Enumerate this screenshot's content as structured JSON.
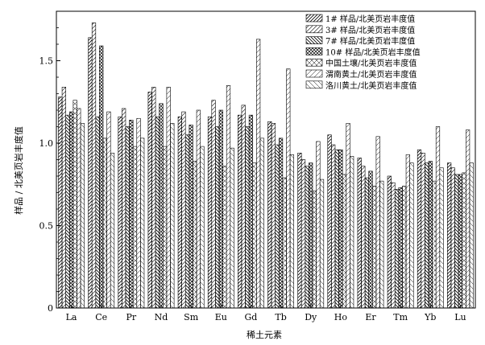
{
  "chart_data": {
    "type": "bar",
    "xlabel": "稀土元素",
    "ylabel": "样品 / 北美页岩丰度值",
    "ylim": [
      0,
      1.8
    ],
    "yticks": [
      "0",
      "0.5",
      "1.0",
      "1.5"
    ],
    "ytick_values": [
      0,
      0.5,
      1.0,
      1.5
    ],
    "grid": false,
    "legend": {
      "position": "top-right"
    },
    "categories": [
      "La",
      "Ce",
      "Pr",
      "Nd",
      "Sm",
      "Eu",
      "Gd",
      "Tb",
      "Dy",
      "Ho",
      "Er",
      "Tm",
      "Yb",
      "Lu"
    ],
    "series": [
      {
        "name": "1# 样品/北美页岩丰度值",
        "values": [
          1.28,
          1.64,
          1.16,
          1.31,
          1.16,
          1.16,
          1.17,
          1.13,
          0.94,
          1.05,
          0.91,
          0.8,
          0.96,
          0.88
        ]
      },
      {
        "name": "3# 样品/北美页岩丰度值",
        "values": [
          1.34,
          1.73,
          1.21,
          1.34,
          1.19,
          1.26,
          1.23,
          1.12,
          0.9,
          0.99,
          0.86,
          0.76,
          0.94,
          0.85
        ]
      },
      {
        "name": "7# 样品/北美页岩丰度值",
        "values": [
          1.17,
          1.16,
          1.1,
          1.16,
          1.05,
          1.1,
          1.1,
          0.99,
          0.86,
          0.96,
          0.79,
          0.72,
          0.88,
          0.81
        ]
      },
      {
        "name": "10# 样品/北美页岩丰度值",
        "values": [
          1.19,
          1.59,
          1.14,
          1.24,
          1.11,
          1.2,
          1.17,
          1.03,
          0.88,
          0.96,
          0.83,
          0.73,
          0.89,
          0.81
        ]
      },
      {
        "name": "中国土壤/北美页岩丰度值",
        "values": [
          1.26,
          1.03,
          0.98,
          0.98,
          0.89,
          0.86,
          0.88,
          0.79,
          0.71,
          0.81,
          0.74,
          0.74,
          0.77,
          0.82
        ]
      },
      {
        "name": "渭南黄土/北美页岩丰度值",
        "values": [
          1.21,
          1.19,
          1.15,
          1.34,
          1.2,
          1.35,
          1.63,
          1.45,
          1.01,
          1.12,
          1.04,
          0.93,
          1.1,
          1.08
        ]
      },
      {
        "name": "洛川黄土/北美页岩丰度值",
        "values": [
          1.12,
          0.94,
          1.03,
          1.12,
          0.98,
          0.97,
          1.03,
          0.93,
          0.78,
          0.92,
          0.77,
          0.88,
          0.85,
          0.88
        ]
      }
    ]
  }
}
